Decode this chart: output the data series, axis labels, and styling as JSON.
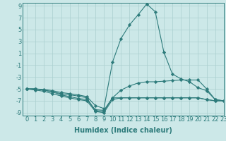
{
  "lines": [
    {
      "x": [
        0,
        1,
        2,
        3,
        4,
        5,
        6,
        7,
        8,
        9,
        10,
        11,
        12,
        13,
        14,
        15,
        16,
        17,
        18,
        19,
        20,
        21,
        22,
        23
      ],
      "y": [
        -5,
        -5,
        -5.2,
        -5.5,
        -5.8,
        -6.0,
        -6.2,
        -6.5,
        -8.7,
        -8.8,
        -6.5,
        -6.5,
        -6.5,
        -6.5,
        -6.5,
        -6.5,
        -6.5,
        -6.5,
        -6.5,
        -6.5,
        -6.5,
        -6.8,
        -7.0,
        -7.0
      ]
    },
    {
      "x": [
        0,
        1,
        2,
        3,
        4,
        5,
        6,
        7,
        8,
        9,
        10,
        11,
        12,
        13,
        14,
        15,
        16,
        17,
        18,
        19,
        20,
        21,
        22,
        23
      ],
      "y": [
        -5,
        -5.2,
        -5.4,
        -5.8,
        -6.2,
        -6.5,
        -6.8,
        -7.0,
        -8.8,
        -9.0,
        -6.8,
        -6.5,
        -6.5,
        -6.5,
        -6.5,
        -6.5,
        -6.5,
        -6.5,
        -6.5,
        -6.5,
        -6.5,
        -6.8,
        -7.0,
        -7.0
      ]
    },
    {
      "x": [
        0,
        1,
        2,
        3,
        4,
        5,
        6,
        7,
        8,
        9,
        10,
        11,
        12,
        13,
        14,
        15,
        16,
        17,
        18,
        19,
        20,
        21,
        22,
        23
      ],
      "y": [
        -5,
        -5,
        -5.2,
        -5.5,
        -6.0,
        -6.3,
        -6.6,
        -6.8,
        -8.5,
        -8.6,
        -6.5,
        -5.2,
        -4.5,
        -4.0,
        -3.8,
        -3.8,
        -3.7,
        -3.6,
        -3.5,
        -3.5,
        -3.5,
        -5.0,
        -6.8,
        -7.0
      ]
    },
    {
      "x": [
        0,
        1,
        2,
        3,
        4,
        5,
        6,
        7,
        8,
        9,
        10,
        11,
        12,
        13,
        14,
        15,
        16,
        17,
        18,
        19,
        20,
        21,
        22,
        23
      ],
      "y": [
        -5,
        -5,
        -5.1,
        -5.3,
        -5.6,
        -5.8,
        -6.0,
        -6.3,
        -7.8,
        -8.3,
        -0.5,
        3.5,
        5.8,
        7.5,
        9.3,
        8.0,
        1.2,
        -2.5,
        -3.3,
        -3.8,
        -4.8,
        -5.3,
        -6.8,
        -7.0
      ]
    }
  ],
  "xlim": [
    -0.5,
    23
  ],
  "ylim": [
    -9.5,
    9.5
  ],
  "xticks": [
    0,
    1,
    2,
    3,
    4,
    5,
    6,
    7,
    8,
    9,
    10,
    11,
    12,
    13,
    14,
    15,
    16,
    17,
    18,
    19,
    20,
    21,
    22,
    23
  ],
  "yticks": [
    -9,
    -7,
    -5,
    -3,
    -1,
    1,
    3,
    5,
    7,
    9
  ],
  "xlabel": "Humidex (Indice chaleur)",
  "line_color": "#2d7b7b",
  "marker": "D",
  "markersize": 2.2,
  "bg_color": "#cce8e8",
  "grid_color": "#aacfcf",
  "axis_fontsize": 7,
  "tick_fontsize": 6,
  "xlabel_fontsize": 7
}
